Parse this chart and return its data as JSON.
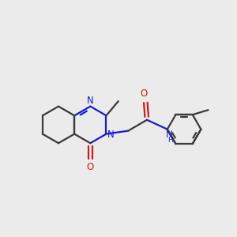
{
  "bg_color": "#ebebeb",
  "bond_color": "#3a3a3a",
  "N_color": "#1a1acc",
  "O_color": "#cc1a1a",
  "line_width": 1.6,
  "figsize": [
    3.0,
    3.0
  ],
  "dpi": 100,
  "xlim": [
    0.0,
    3.0
  ],
  "ylim": [
    0.6,
    2.6
  ]
}
